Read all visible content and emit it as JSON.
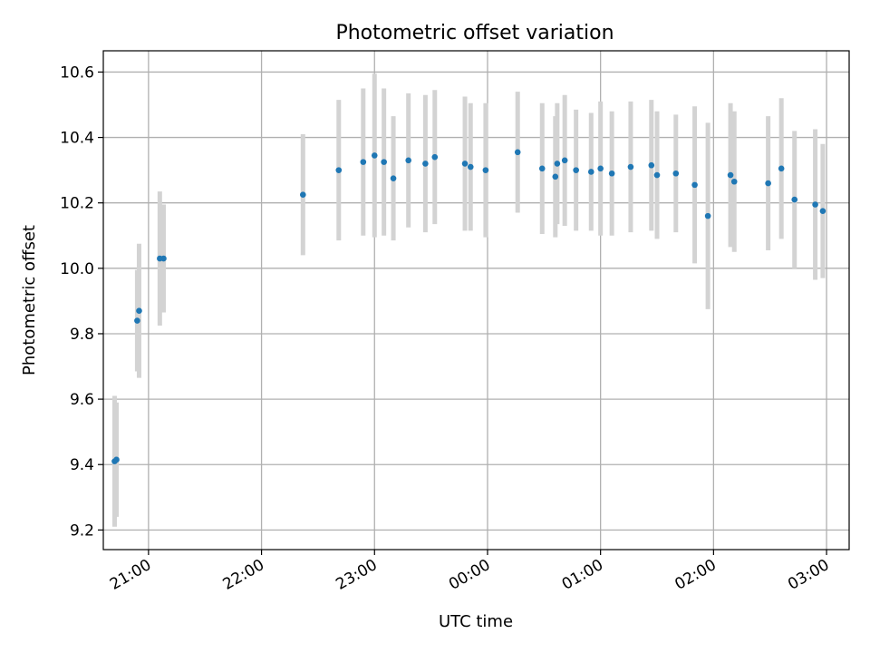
{
  "chart_data": {
    "type": "scatter",
    "title": "Photometric offset variation",
    "xlabel": "UTC time",
    "ylabel": "Photometric offset",
    "ylim": [
      9.14,
      10.665
    ],
    "xlim": [
      "20:36",
      "03:12"
    ],
    "x_ticks": [
      "21:00",
      "22:00",
      "23:00",
      "00:00",
      "01:00",
      "02:00",
      "03:00"
    ],
    "y_ticks": [
      "9.2",
      "9.4",
      "9.6",
      "9.8",
      "10.0",
      "10.2",
      "10.4",
      "10.6"
    ],
    "grid": true,
    "x_tick_rotation_deg": 30,
    "colors": {
      "point": "#1f77b4",
      "errorbar": "#d3d3d3",
      "grid": "#b0b0b0"
    },
    "series": [
      {
        "points": [
          {
            "x": "20:42",
            "y": 9.41,
            "yerr": 0.2
          },
          {
            "x": "20:43",
            "y": 9.415,
            "yerr": 0.175
          },
          {
            "x": "20:54",
            "y": 9.84,
            "yerr": 0.155
          },
          {
            "x": "20:55",
            "y": 9.87,
            "yerr": 0.205
          },
          {
            "x": "21:06",
            "y": 10.03,
            "yerr": 0.205
          },
          {
            "x": "21:08",
            "y": 10.03,
            "yerr": 0.165
          },
          {
            "x": "22:22",
            "y": 10.225,
            "yerr": 0.185
          },
          {
            "x": "22:41",
            "y": 10.3,
            "yerr": 0.215
          },
          {
            "x": "22:54",
            "y": 10.325,
            "yerr": 0.225
          },
          {
            "x": "23:00",
            "y": 10.345,
            "yerr": 0.25
          },
          {
            "x": "23:05",
            "y": 10.325,
            "yerr": 0.225
          },
          {
            "x": "23:10",
            "y": 10.275,
            "yerr": 0.19
          },
          {
            "x": "23:18",
            "y": 10.33,
            "yerr": 0.205
          },
          {
            "x": "23:27",
            "y": 10.32,
            "yerr": 0.21
          },
          {
            "x": "23:32",
            "y": 10.34,
            "yerr": 0.205
          },
          {
            "x": "23:48",
            "y": 10.32,
            "yerr": 0.205
          },
          {
            "x": "23:51",
            "y": 10.31,
            "yerr": 0.195
          },
          {
            "x": "23:59",
            "y": 10.3,
            "yerr": 0.205
          },
          {
            "x": "00:16",
            "y": 10.355,
            "yerr": 0.185
          },
          {
            "x": "00:29",
            "y": 10.305,
            "yerr": 0.2
          },
          {
            "x": "00:36",
            "y": 10.28,
            "yerr": 0.185
          },
          {
            "x": "00:37",
            "y": 10.32,
            "yerr": 0.185
          },
          {
            "x": "00:41",
            "y": 10.33,
            "yerr": 0.2
          },
          {
            "x": "00:47",
            "y": 10.3,
            "yerr": 0.185
          },
          {
            "x": "00:55",
            "y": 10.295,
            "yerr": 0.18
          },
          {
            "x": "01:00",
            "y": 10.305,
            "yerr": 0.205
          },
          {
            "x": "01:06",
            "y": 10.29,
            "yerr": 0.19
          },
          {
            "x": "01:16",
            "y": 10.31,
            "yerr": 0.2
          },
          {
            "x": "01:27",
            "y": 10.315,
            "yerr": 0.2
          },
          {
            "x": "01:30",
            "y": 10.285,
            "yerr": 0.195
          },
          {
            "x": "01:40",
            "y": 10.29,
            "yerr": 0.18
          },
          {
            "x": "01:50",
            "y": 10.255,
            "yerr": 0.24
          },
          {
            "x": "01:57",
            "y": 10.16,
            "yerr": 0.285
          },
          {
            "x": "02:09",
            "y": 10.285,
            "yerr": 0.22
          },
          {
            "x": "02:11",
            "y": 10.265,
            "yerr": 0.215
          },
          {
            "x": "02:29",
            "y": 10.26,
            "yerr": 0.205
          },
          {
            "x": "02:36",
            "y": 10.305,
            "yerr": 0.215
          },
          {
            "x": "02:43",
            "y": 10.21,
            "yerr": 0.21
          },
          {
            "x": "02:54",
            "y": 10.195,
            "yerr": 0.23
          },
          {
            "x": "02:58",
            "y": 10.175,
            "yerr": 0.205
          }
        ]
      }
    ]
  }
}
